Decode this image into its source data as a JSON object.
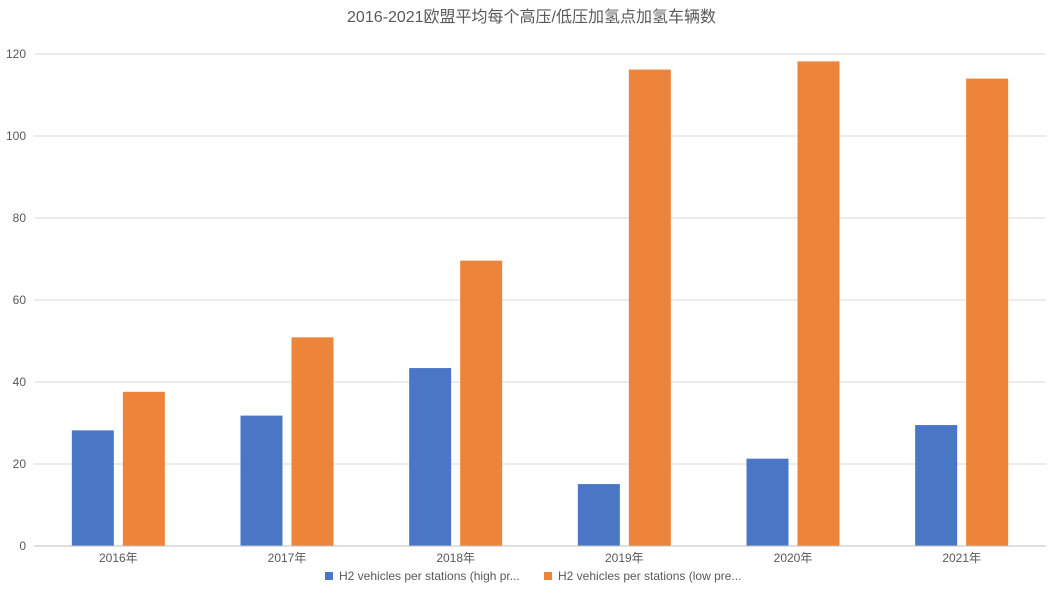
{
  "chart_data": {
    "type": "bar",
    "title": "2016-2021欧盟平均每个高压/低压加氢点加氢车辆数",
    "xlabel": "",
    "ylabel": "",
    "categories": [
      "2016年",
      "2017年",
      "2018年",
      "2019年",
      "2020年",
      "2021年"
    ],
    "series": [
      {
        "name": "H2 vehicles per stations (high pr...",
        "color": "#4a76c6",
        "values": [
          28.2,
          31.8,
          43.4,
          15.1,
          21.3,
          29.5
        ]
      },
      {
        "name": "H2 vehicles per stations (low pre...",
        "color": "#ee843a",
        "values": [
          37.6,
          50.9,
          69.6,
          116.2,
          118.2,
          114.0
        ]
      }
    ],
    "ylim": [
      0,
      120
    ],
    "yticks": [
      0,
      20,
      40,
      60,
      80,
      100,
      120
    ],
    "grid": true,
    "legend_position": "bottom"
  }
}
